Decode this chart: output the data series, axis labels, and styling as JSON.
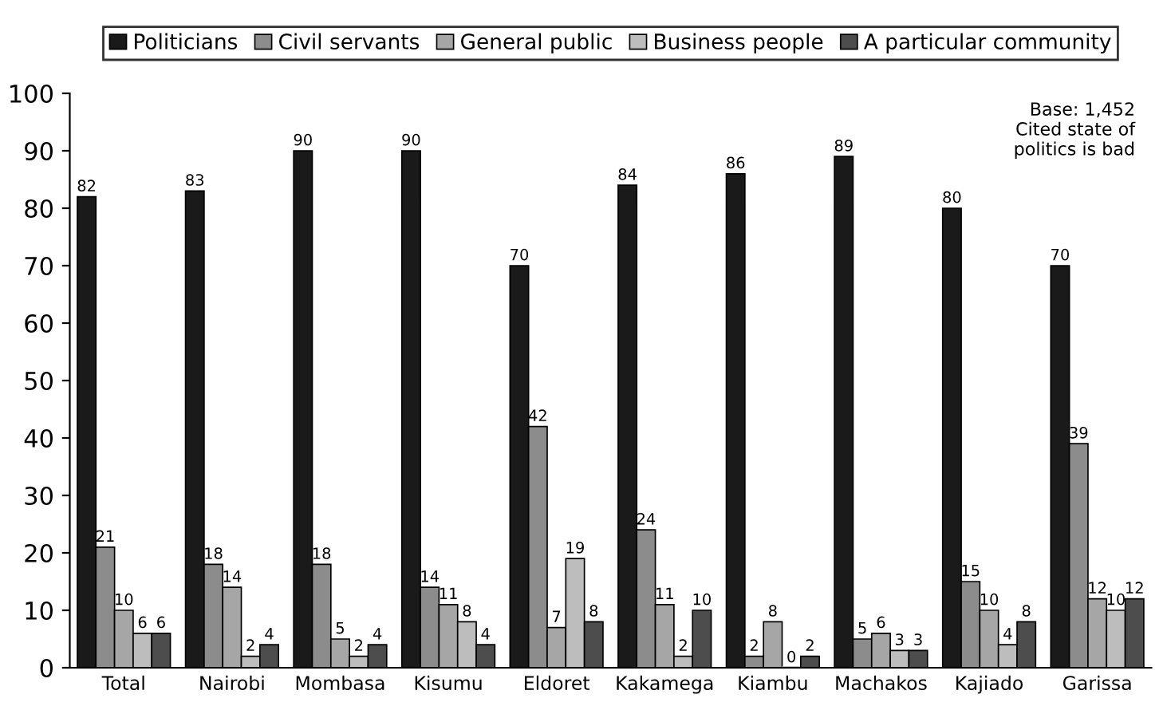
{
  "chart_data": {
    "type": "bar",
    "categories": [
      "Total",
      "Nairobi",
      "Mombasa",
      "Kisumu",
      "Eldoret",
      "Kakamega",
      "Kiambu",
      "Machakos",
      "Kajiado",
      "Garissa"
    ],
    "series": [
      {
        "name": "Politicians",
        "color": "#1a1a1a",
        "values": [
          82,
          83,
          90,
          90,
          70,
          84,
          86,
          89,
          80,
          70
        ]
      },
      {
        "name": "Civil servants",
        "color": "#8c8c8c",
        "values": [
          21,
          18,
          18,
          14,
          42,
          24,
          2,
          5,
          15,
          39
        ]
      },
      {
        "name": "General public",
        "color": "#a6a6a6",
        "values": [
          10,
          14,
          5,
          11,
          7,
          11,
          8,
          6,
          10,
          12
        ]
      },
      {
        "name": "Business people",
        "color": "#bdbdbd",
        "values": [
          6,
          2,
          2,
          8,
          19,
          2,
          0,
          3,
          4,
          10
        ]
      },
      {
        "name": "A particular community",
        "color": "#4d4d4d",
        "values": [
          6,
          4,
          4,
          4,
          8,
          10,
          2,
          3,
          8,
          12
        ]
      }
    ],
    "ylim": [
      0,
      100
    ],
    "yticks": [
      0,
      10,
      20,
      30,
      40,
      50,
      60,
      70,
      80,
      90,
      100
    ],
    "data_labels": true,
    "grid": false,
    "legend": "top",
    "annotations": [
      "Base: 1,452\nCited state of\npolitics is bad"
    ]
  }
}
